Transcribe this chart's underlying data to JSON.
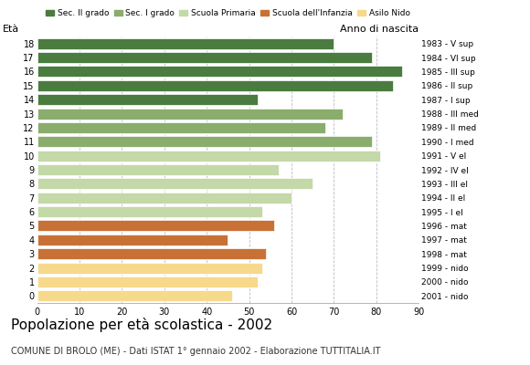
{
  "title": "Popolazione per età scolastica - 2002",
  "subtitle": "COMUNE DI BROLO (ME) - Dati ISTAT 1° gennaio 2002 - Elaborazione TUTTITALIA.IT",
  "ylabel_left": "Età",
  "ylabel_right": "Anno di nascita",
  "ages": [
    18,
    17,
    16,
    15,
    14,
    13,
    12,
    11,
    10,
    9,
    8,
    7,
    6,
    5,
    4,
    3,
    2,
    1,
    0
  ],
  "birth_years": [
    "1983 - V sup",
    "1984 - VI sup",
    "1985 - III sup",
    "1986 - II sup",
    "1987 - I sup",
    "1988 - III med",
    "1989 - II med",
    "1990 - I med",
    "1991 - V el",
    "1992 - IV el",
    "1993 - III el",
    "1994 - II el",
    "1995 - I el",
    "1996 - mat",
    "1997 - mat",
    "1998 - mat",
    "1999 - nido",
    "2000 - nido",
    "2001 - nido"
  ],
  "values": [
    70,
    79,
    86,
    84,
    52,
    72,
    68,
    79,
    81,
    57,
    65,
    60,
    53,
    56,
    45,
    54,
    53,
    52,
    46
  ],
  "categories": [
    "Sec. II grado",
    "Sec. II grado",
    "Sec. II grado",
    "Sec. II grado",
    "Sec. II grado",
    "Sec. I grado",
    "Sec. I grado",
    "Sec. I grado",
    "Scuola Primaria",
    "Scuola Primaria",
    "Scuola Primaria",
    "Scuola Primaria",
    "Scuola Primaria",
    "Scuola dell'Infanzia",
    "Scuola dell'Infanzia",
    "Scuola dell'Infanzia",
    "Asilo Nido",
    "Asilo Nido",
    "Asilo Nido"
  ],
  "colors": {
    "Sec. II grado": "#4a7c3f",
    "Sec. I grado": "#8aad6e",
    "Scuola Primaria": "#c3d9a8",
    "Scuola dell'Infanzia": "#c87137",
    "Asilo Nido": "#f7d98b"
  },
  "legend_order": [
    "Sec. II grado",
    "Sec. I grado",
    "Scuola Primaria",
    "Scuola dell'Infanzia",
    "Asilo Nido"
  ],
  "xlim": [
    0,
    90
  ],
  "xticks": [
    0,
    10,
    20,
    30,
    40,
    50,
    60,
    70,
    80,
    90
  ],
  "grid_color": "#bbbbbb",
  "background_color": "#ffffff",
  "bar_height": 0.78
}
